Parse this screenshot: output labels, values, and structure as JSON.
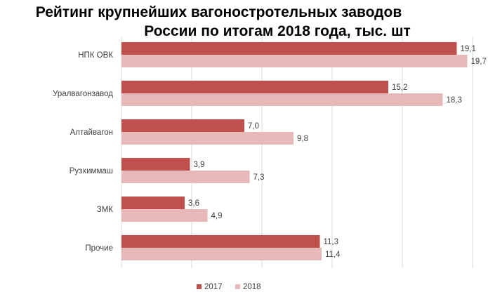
{
  "chart_data": {
    "type": "bar",
    "orientation": "horizontal",
    "title_lines": [
      "Рейтинг крупнейших вагоностротельных заводов",
      "России по итогам 2018 года, тыс. шт"
    ],
    "categories": [
      "НПК ОВК",
      "Уралвагонзавод",
      "Алтайвагон",
      "Рузхиммаш",
      "ЗМК",
      "Прочие"
    ],
    "value_labels": [
      [
        "19,1",
        "19,7"
      ],
      [
        "15,2",
        "18,3"
      ],
      [
        "7,0",
        "9,8"
      ],
      [
        "3,9",
        "7,3"
      ],
      [
        "3,6",
        "4,9"
      ],
      [
        "11,3",
        "11,4"
      ]
    ],
    "series": [
      {
        "name": "2017",
        "values": [
          19.1,
          15.2,
          7.0,
          3.9,
          3.6,
          11.3
        ],
        "color": "#c0504d"
      },
      {
        "name": "2018",
        "values": [
          19.7,
          18.3,
          9.8,
          7.3,
          4.9,
          11.4
        ],
        "color": "#e6b9b8"
      }
    ],
    "xlim": [
      0,
      20
    ],
    "x_gridlines_step": 4,
    "grid": true,
    "legend": "bottom"
  }
}
